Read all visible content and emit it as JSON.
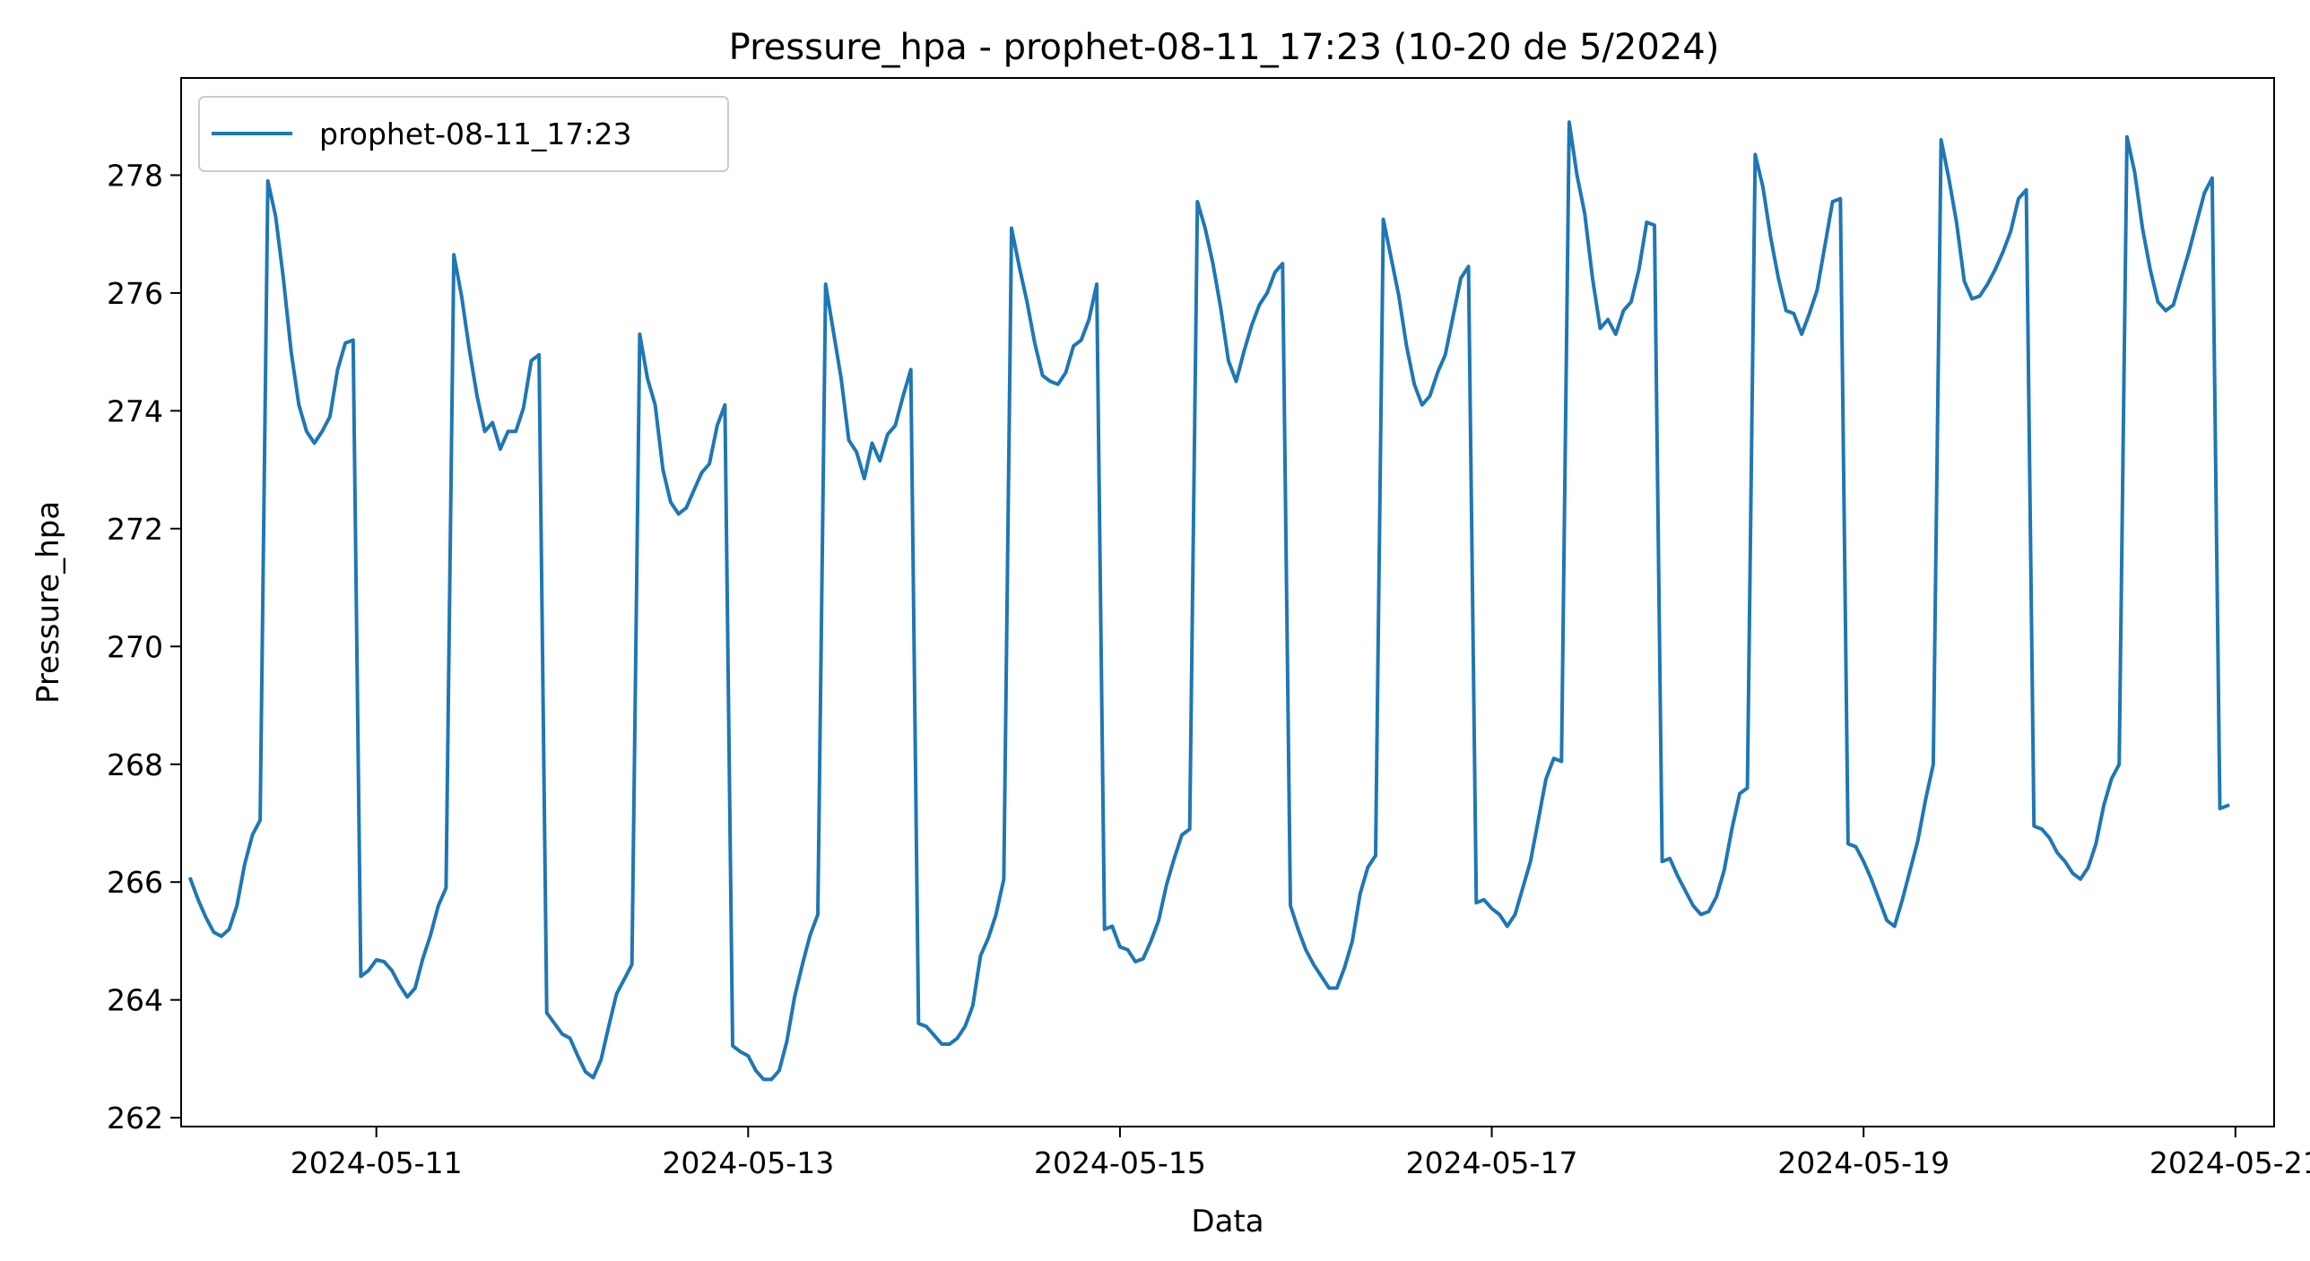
{
  "chart_data": {
    "type": "line",
    "title": "Pressure_hpa - prophet-08-11_17:23 (10-20 de 5/2024)",
    "xlabel": "Data",
    "ylabel": "Pressure_hpa",
    "legend_position": "top-left",
    "grid": false,
    "x_ticks": [
      "2024-05-11",
      "2024-05-13",
      "2024-05-15",
      "2024-05-17",
      "2024-05-19",
      "2024-05-21"
    ],
    "y_ticks": [
      262,
      264,
      266,
      268,
      270,
      272,
      274,
      276,
      278
    ],
    "ylim": [
      261.85,
      279.65
    ],
    "xlim": [
      "2024-05-09T22:48",
      "2024-05-21T05:00"
    ],
    "series": [
      {
        "name": "prophet-08-11_17:23",
        "color": "#1f77b4",
        "x_start": "2024-05-10T00:00",
        "x_step_hours": 1,
        "values": [
          266.05,
          265.7,
          265.4,
          265.15,
          265.08,
          265.2,
          265.6,
          266.3,
          266.8,
          267.05,
          277.9,
          277.3,
          276.25,
          275.0,
          274.1,
          273.65,
          273.45,
          273.65,
          273.9,
          274.7,
          275.15,
          275.2,
          264.4,
          264.5,
          264.68,
          264.65,
          264.5,
          264.25,
          264.05,
          264.2,
          264.7,
          265.1,
          265.6,
          265.9,
          276.65,
          275.95,
          275.05,
          274.25,
          273.65,
          273.8,
          273.35,
          273.65,
          273.65,
          274.05,
          274.85,
          274.95,
          263.78,
          263.6,
          263.42,
          263.35,
          263.05,
          262.78,
          262.68,
          262.98,
          263.55,
          264.1,
          264.35,
          264.6,
          275.3,
          274.55,
          274.1,
          273.0,
          272.45,
          272.25,
          272.35,
          272.65,
          272.95,
          273.1,
          273.75,
          274.1,
          263.22,
          263.12,
          263.05,
          262.8,
          262.65,
          262.65,
          262.8,
          263.3,
          264.05,
          264.6,
          265.1,
          265.45,
          276.15,
          275.35,
          274.55,
          273.5,
          273.3,
          272.85,
          273.45,
          273.15,
          273.6,
          273.75,
          274.25,
          274.7,
          263.6,
          263.55,
          263.4,
          263.25,
          263.25,
          263.35,
          263.55,
          263.9,
          264.75,
          265.05,
          265.45,
          266.05,
          277.1,
          276.45,
          275.85,
          275.15,
          274.6,
          274.5,
          274.45,
          274.65,
          275.1,
          275.2,
          275.55,
          276.15,
          265.2,
          265.25,
          264.9,
          264.85,
          264.65,
          264.7,
          265.0,
          265.35,
          265.95,
          266.4,
          266.8,
          266.9,
          277.55,
          277.1,
          276.5,
          275.75,
          274.85,
          274.5,
          275.0,
          275.45,
          275.8,
          276.0,
          276.35,
          276.5,
          265.6,
          265.2,
          264.85,
          264.6,
          264.4,
          264.2,
          264.2,
          264.55,
          265.0,
          265.8,
          266.25,
          266.45,
          277.25,
          276.6,
          275.95,
          275.1,
          274.45,
          274.1,
          274.25,
          274.65,
          274.95,
          275.6,
          276.25,
          276.45,
          265.65,
          265.7,
          265.55,
          265.45,
          265.25,
          265.45,
          265.9,
          266.35,
          267.05,
          267.75,
          268.1,
          268.05,
          278.9,
          278.0,
          277.35,
          276.25,
          275.4,
          275.55,
          275.3,
          275.7,
          275.85,
          276.4,
          277.2,
          277.15,
          266.35,
          266.4,
          266.1,
          265.85,
          265.6,
          265.45,
          265.5,
          265.75,
          266.2,
          266.9,
          267.5,
          267.6,
          278.35,
          277.8,
          276.95,
          276.25,
          275.7,
          275.65,
          275.3,
          275.65,
          276.05,
          276.8,
          277.55,
          277.6,
          266.65,
          266.6,
          266.35,
          266.05,
          265.7,
          265.35,
          265.25,
          265.7,
          266.2,
          266.7,
          267.4,
          268.0,
          278.6,
          277.95,
          277.2,
          276.2,
          275.9,
          275.95,
          276.15,
          276.4,
          276.7,
          277.05,
          277.6,
          277.75,
          266.95,
          266.9,
          266.75,
          266.5,
          266.35,
          266.15,
          266.05,
          266.25,
          266.65,
          267.3,
          267.75,
          268.0,
          278.65,
          278.05,
          277.1,
          276.4,
          275.85,
          275.7,
          275.8,
          276.25,
          276.7,
          277.2,
          277.7,
          277.95,
          267.25,
          267.3
        ]
      }
    ]
  }
}
